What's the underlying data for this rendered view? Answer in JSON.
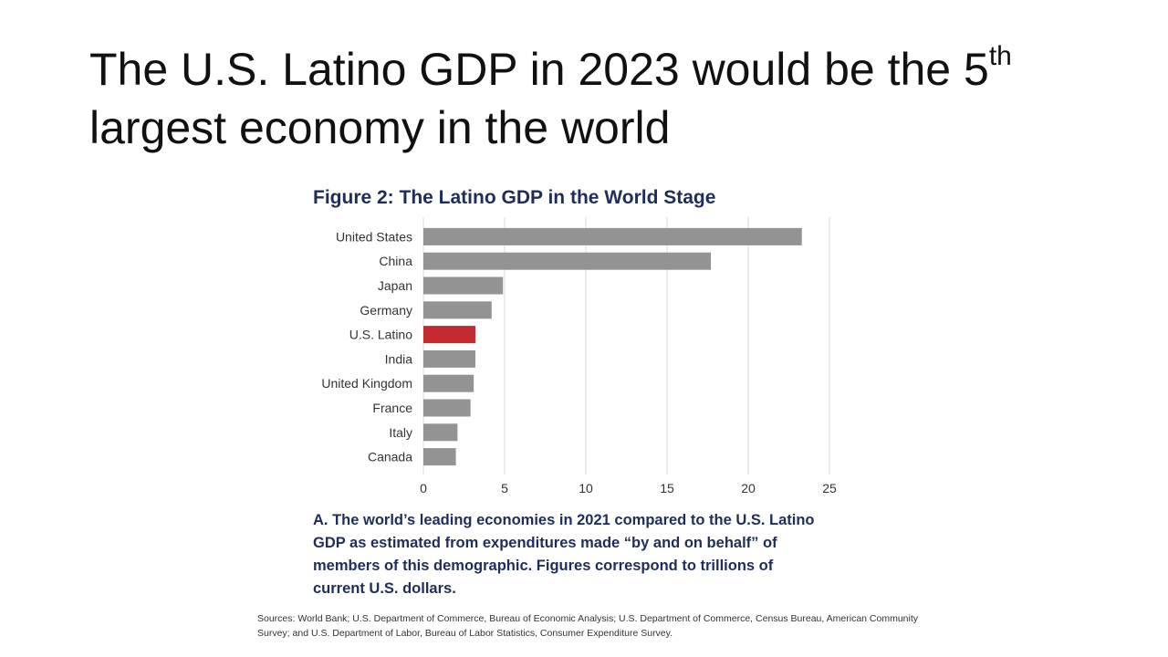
{
  "slide": {
    "title_main": "The U.S. Latino GDP in 2023 would be the 5",
    "title_sup": "th",
    "title_line2": "largest economy in the world"
  },
  "figure": {
    "caption": "A. The world’s leading economies in 2021 compared to the U.S. Latino GDP as estimated from expenditures made “by and on behalf” of members of this demographic. Figures correspond to trillions of current U.S. dollars.",
    "sources": "Sources: World Bank; U.S. Department of Commerce, Bureau of Economic Analysis; U.S. Department of Commerce, Census Bureau, American Community Survey; and U.S. Department of Labor, Bureau of Labor Statistics, Consumer Expenditure Survey."
  },
  "chart_data": {
    "type": "bar",
    "orientation": "horizontal",
    "title": "Figure 2: The Latino GDP in the World Stage",
    "xlabel": "",
    "ylabel": "",
    "categories": [
      "United States",
      "China",
      "Japan",
      "Germany",
      "U.S. Latino",
      "India",
      "United Kingdom",
      "France",
      "Italy",
      "Canada"
    ],
    "values": [
      23.3,
      17.7,
      4.9,
      4.2,
      3.2,
      3.2,
      3.1,
      2.9,
      2.1,
      2.0
    ],
    "xlim": [
      0,
      25
    ],
    "xticks": [
      0,
      5,
      10,
      15,
      20,
      25
    ],
    "grid": true,
    "colors": {
      "bar": "#939393",
      "highlight": "#c42a30",
      "highlight_category": "U.S. Latino",
      "grid": "#d9d9d9",
      "tick_text": "#333333"
    }
  }
}
